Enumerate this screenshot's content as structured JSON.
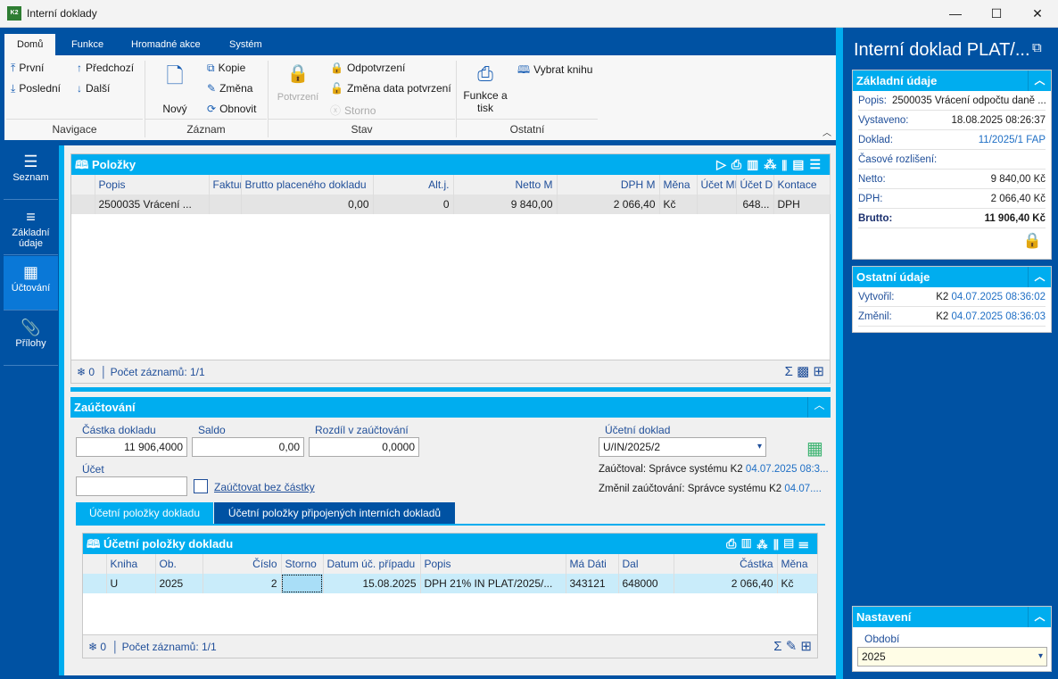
{
  "window": {
    "title": "Interní doklady",
    "minimize": "—",
    "maximize": "☐",
    "close": "✕",
    "logo": "K2"
  },
  "ribbon": {
    "tabs": [
      "Domů",
      "Funkce",
      "Hromadné akce",
      "Systém"
    ],
    "navigace": {
      "label": "Navigace",
      "first": "První",
      "last": "Poslední",
      "prev": "Předchozí",
      "next": "Další"
    },
    "zaznam": {
      "label": "Záznam",
      "new": "Nový",
      "copy": "Kopie",
      "edit": "Změna",
      "refresh": "Obnovit"
    },
    "stav": {
      "label": "Stav",
      "confirm": "Potvrzení",
      "unconfirm": "Odpotvrzení",
      "change_date": "Změna data potvrzení",
      "storno": "Storno"
    },
    "ostatni": {
      "label": "Ostatní",
      "print": "Funkce a tisk",
      "book": "Vybrat knihu"
    }
  },
  "nav": [
    {
      "label": "Seznam",
      "icon": "menu-icon"
    },
    {
      "label": "Základní údaje",
      "icon": "list-icon"
    },
    {
      "label": "Účtování",
      "icon": "calculator-icon",
      "active": true
    },
    {
      "label": "Přílohy",
      "icon": "paperclip-icon"
    }
  ],
  "polozky": {
    "title": "Položky",
    "columns": [
      "Popis",
      "Faktur",
      "Brutto placeného dokladu",
      "Alt.j.",
      "Netto M",
      "DPH M",
      "Měna",
      "Účet MI",
      "Účet D",
      "Kontace"
    ],
    "rows": [
      [
        "2500035 Vrácení ...",
        "",
        "0,00",
        "0",
        "9 840,00",
        "2 066,40",
        "Kč",
        "",
        "648...",
        "DPH"
      ]
    ],
    "footer_count": "0",
    "footer_records": "Počet záznamů: 1/1"
  },
  "zauctovani": {
    "title": "Zaúčtování",
    "castka_label": "Částka dokladu",
    "castka": "11 906,4000",
    "saldo_label": "Saldo",
    "saldo": "0,00",
    "rozdil_label": "Rozdíl v zaúčtování",
    "rozdil": "0,0000",
    "ucet_label": "Účet",
    "ucet": "",
    "bez_castky": "Zaúčtovat bez částky",
    "doklad_label": "Účetní doklad",
    "doklad": "U/IN/2025/2",
    "zauctoval_label": "Zaúčtoval: Správce systému K2",
    "zauctoval_date": "04.07.2025 08:3...",
    "zmenil_label": "Změnil zaúčtování: Správce systému K2",
    "zmenil_date": "04.07....",
    "tabs": [
      "Účetní položky dokladu",
      "Účetní položky připojených interních dokladů"
    ]
  },
  "ucetni": {
    "title": "Účetní položky dokladu",
    "columns": [
      "Kniha",
      "Ob.",
      "Číslo",
      "Storno",
      "Datum úč. případu",
      "Popis",
      "Má Dáti",
      "Dal",
      "Částka",
      "Měna"
    ],
    "rows": [
      [
        "U",
        "2025",
        "2",
        "",
        "15.08.2025",
        "DPH 21% IN PLAT/2025/...",
        "343121",
        "648000",
        "2 066,40",
        "Kč"
      ]
    ],
    "footer_count": "0",
    "footer_records": "Počet záznamů: 1/1"
  },
  "right": {
    "title": "Interní doklad PLAT/...",
    "zakladni": {
      "title": "Základní údaje",
      "popis_label": "Popis:",
      "popis": "2500035 Vrácení odpočtu daně ...",
      "rows": [
        {
          "k": "Vystaveno:",
          "v": "18.08.2025 08:26:37"
        },
        {
          "k": "Doklad:",
          "v": "11/2025/1 FAP"
        },
        {
          "k": "Časové rozlišení:",
          "v": ""
        },
        {
          "k": "Netto:",
          "v": "9 840,00 Kč"
        },
        {
          "k": "DPH:",
          "v": "2 066,40 Kč"
        },
        {
          "k": "Brutto:",
          "v": "11 906,40 Kč"
        }
      ]
    },
    "ostatni": {
      "title": "Ostatní údaje",
      "rows": [
        {
          "k": "Vytvořil:",
          "user": "K2",
          "date": "04.07.2025 08:36:02"
        },
        {
          "k": "Změnil:",
          "user": "K2",
          "date": "04.07.2025 08:36:03"
        }
      ]
    },
    "nastaveni": {
      "title": "Nastavení",
      "obdobi_label": "Období",
      "obdobi": "2025"
    }
  },
  "colors": {
    "accent": "#00adef",
    "dark": "#0052a3",
    "lock": "#3cb371"
  }
}
